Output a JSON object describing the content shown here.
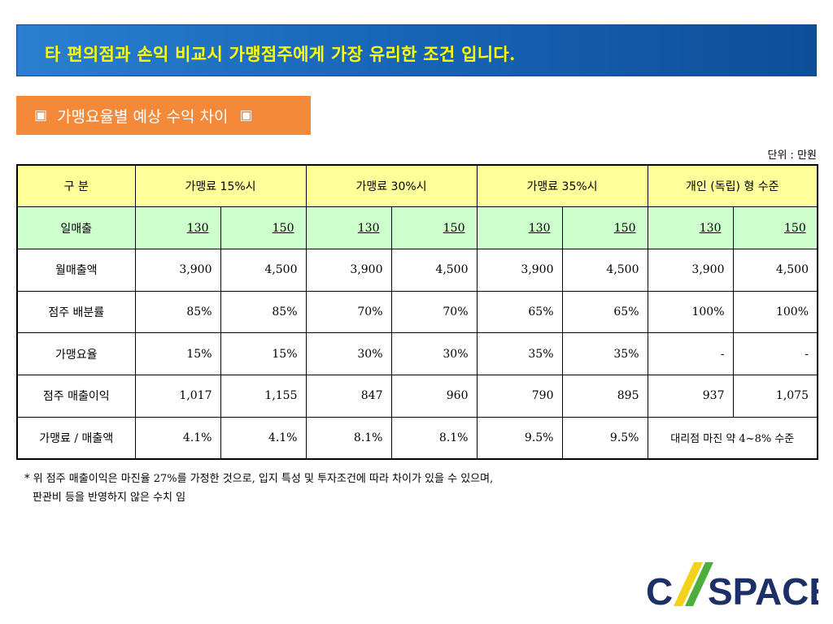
{
  "header": {
    "title": "타 편의점과 손익 비교시 가맹점주에게 가장 유리한 조건 입니다."
  },
  "section": {
    "mark_left": "▣",
    "label": "가맹요율별 예상 수익 차이",
    "mark_right": "▣"
  },
  "unit_note": "단위 : 만원",
  "table": {
    "corner": "구 분",
    "groups": [
      "가맹료 15%시",
      "가맹료 30%시",
      "가맹료 35%시",
      "개인 (독립) 형 수준"
    ],
    "sales_label": "일매출",
    "sales": [
      "130",
      "150",
      "130",
      "150",
      "130",
      "150",
      "130",
      "150"
    ],
    "rows": [
      {
        "label": "월매출액",
        "cells": [
          "3,900",
          "4,500",
          "3,900",
          "4,500",
          "3,900",
          "4,500",
          "3,900",
          "4,500"
        ]
      },
      {
        "label": "점주 배분률",
        "cells": [
          "85%",
          "85%",
          "70%",
          "70%",
          "65%",
          "65%",
          "100%",
          "100%"
        ]
      },
      {
        "label": "가맹요율",
        "cells": [
          "15%",
          "15%",
          "30%",
          "30%",
          "35%",
          "35%",
          "-",
          "-"
        ]
      },
      {
        "label": "점주 매출이익",
        "cells": [
          "1,017",
          "1,155",
          "847",
          "960",
          "790",
          "895",
          "937",
          "1,075"
        ]
      }
    ],
    "last_row": {
      "label": "가맹료 / 매출액",
      "cells": [
        "4.1%",
        "4.1%",
        "8.1%",
        "8.1%",
        "9.5%",
        "9.5%"
      ],
      "merged_note": "대리점 마진 약 4~8% 수준"
    }
  },
  "footnote": {
    "line1": "* 위 점주 매출이익은 마진율 27%를 가정한 것으로, 입지 특성 및 투자조건에 따라 차이가 있을 수 있으며,",
    "line2": "판관비 등을 반영하지 않은 수치 임"
  },
  "logo": {
    "text_c": "C",
    "text_rest": "SPACE",
    "colors": {
      "navy": "#1c2f66",
      "yellow": "#f2d21a",
      "green": "#4caf3d"
    }
  }
}
